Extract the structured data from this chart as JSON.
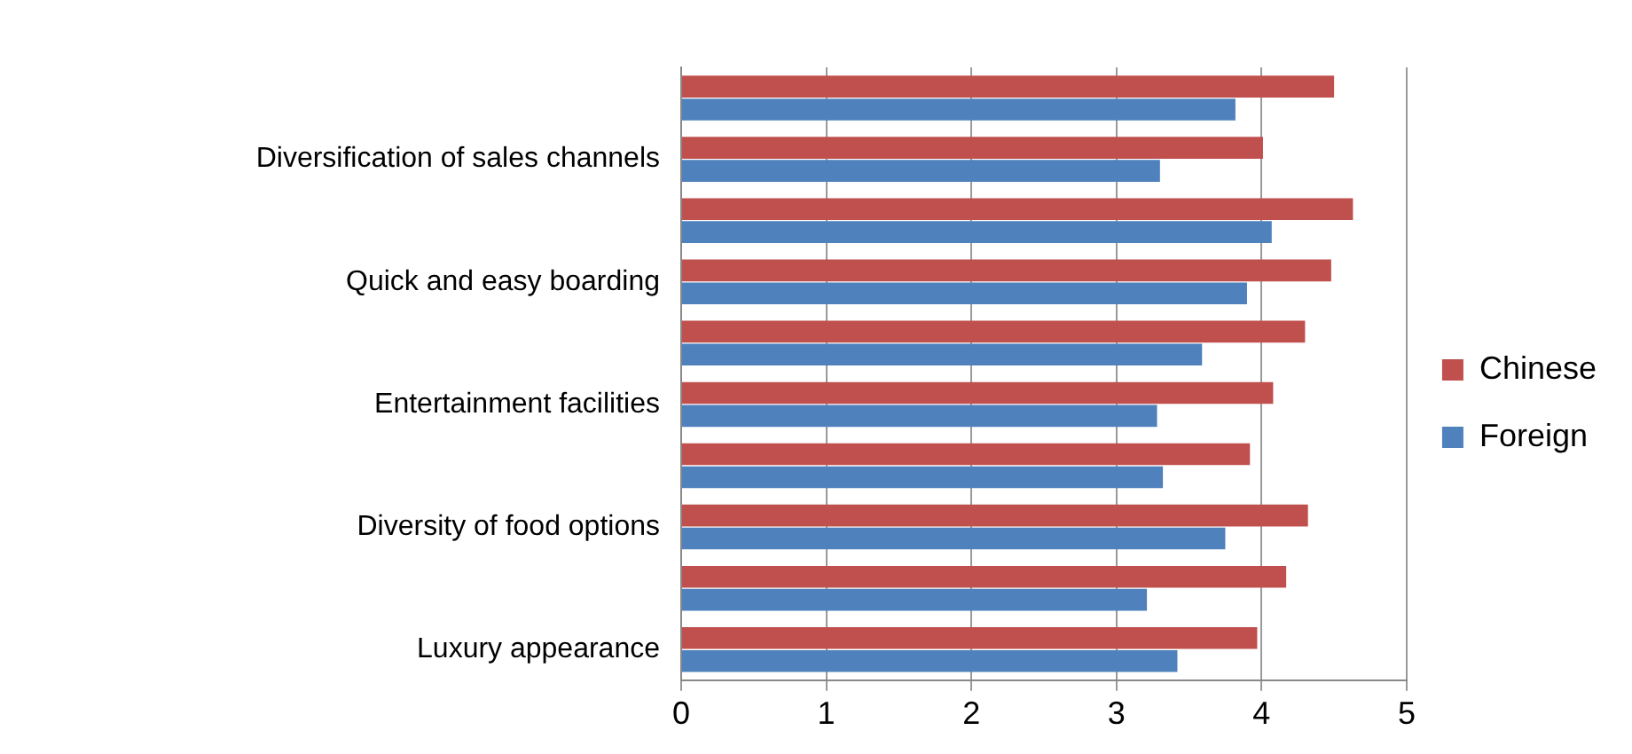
{
  "chart_data": {
    "type": "bar",
    "orientation": "horizontal",
    "categories": [
      null,
      "Diversification of sales channels",
      null,
      "Quick and easy boarding",
      null,
      "Entertainment facilities",
      null,
      "Diversity of food options",
      null,
      "Luxury appearance"
    ],
    "series": [
      {
        "name": "Chinese",
        "color": "#c0504d",
        "values": [
          4.5,
          4.01,
          4.63,
          4.48,
          4.3,
          4.08,
          3.92,
          4.32,
          4.17,
          3.97
        ]
      },
      {
        "name": "Foreign",
        "color": "#4f81bd",
        "values": [
          3.82,
          3.3,
          4.07,
          3.9,
          3.59,
          3.28,
          3.32,
          3.75,
          3.21,
          3.42
        ]
      }
    ],
    "xlim": [
      0,
      5
    ],
    "xticks": [
      0,
      1,
      2,
      3,
      4,
      5
    ],
    "grid": "x",
    "legend": "right"
  }
}
